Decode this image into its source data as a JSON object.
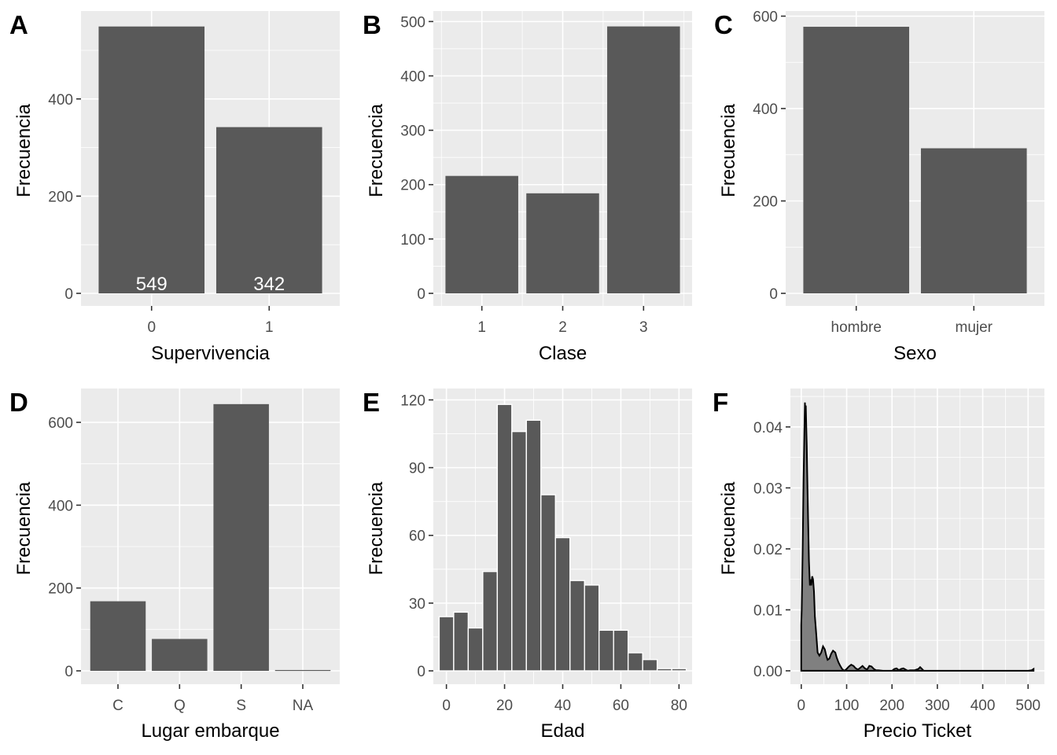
{
  "chart_data": [
    {
      "id": "A",
      "type": "bar",
      "tag": "A",
      "categories": [
        "0",
        "1"
      ],
      "values": [
        549,
        342
      ],
      "data_labels": [
        "549",
        "342"
      ],
      "xlabel": "Supervivencia",
      "ylabel": "Frecuencia",
      "yticks": [
        0,
        200,
        400
      ],
      "ylim": [
        0,
        576
      ],
      "grid": true
    },
    {
      "id": "B",
      "type": "bar",
      "tag": "B",
      "categories": [
        "1",
        "2",
        "3"
      ],
      "values": [
        216,
        184,
        491
      ],
      "xlabel": "Clase",
      "ylabel": "Frecuencia",
      "yticks": [
        0,
        100,
        200,
        300,
        400,
        500
      ],
      "ylim": [
        0,
        515
      ],
      "grid": true
    },
    {
      "id": "C",
      "type": "bar",
      "tag": "C",
      "categories": [
        "hombre",
        "mujer"
      ],
      "values": [
        577,
        314
      ],
      "xlabel": "Sexo",
      "ylabel": "Frecuencia",
      "yticks": [
        0,
        200,
        400,
        600
      ],
      "ylim": [
        0,
        606
      ],
      "grid": true
    },
    {
      "id": "D",
      "type": "bar",
      "tag": "D",
      "categories": [
        "C",
        "Q",
        "S",
        "NA"
      ],
      "values": [
        168,
        77,
        644,
        2
      ],
      "xlabel": "Lugar embarque",
      "ylabel": "Frecuencia",
      "yticks": [
        0,
        200,
        400,
        600
      ],
      "ylim": [
        0,
        676
      ],
      "grid": true
    },
    {
      "id": "E",
      "type": "bar",
      "subtype": "histogram",
      "tag": "E",
      "bin_width": 5,
      "bin_centers": [
        0,
        5,
        10,
        15,
        20,
        25,
        30,
        35,
        40,
        45,
        50,
        55,
        60,
        65,
        70,
        75,
        80
      ],
      "values": [
        24,
        26,
        19,
        44,
        118,
        106,
        111,
        78,
        59,
        40,
        38,
        18,
        18,
        8,
        5,
        1,
        1
      ],
      "xlabel": "Edad",
      "ylabel": "Frecuencia",
      "xticks": [
        0,
        20,
        40,
        60,
        80
      ],
      "yticks": [
        0,
        30,
        60,
        90,
        120
      ],
      "xlim": [
        -4.5,
        84.5
      ],
      "ylim": [
        0,
        124
      ],
      "grid": true
    },
    {
      "id": "F",
      "type": "area",
      "subtype": "density",
      "tag": "F",
      "x": [
        0,
        1,
        3,
        5,
        7,
        8,
        9,
        10,
        11,
        12,
        13,
        15,
        17,
        19,
        20,
        22,
        24,
        26,
        28,
        30,
        33,
        36,
        40,
        44,
        48,
        52,
        55,
        58,
        62,
        66,
        70,
        75,
        78,
        82,
        86,
        90,
        95,
        100,
        105,
        110,
        115,
        120,
        125,
        130,
        135,
        140,
        145,
        150,
        155,
        160,
        165,
        170,
        180,
        200,
        205,
        210,
        215,
        220,
        225,
        230,
        235,
        240,
        250,
        258,
        262,
        266,
        270,
        280,
        300,
        400,
        500,
        508,
        512
      ],
      "y": [
        0.0075,
        0.01,
        0.02,
        0.031,
        0.04,
        0.044,
        0.042,
        0.0435,
        0.04,
        0.037,
        0.033,
        0.025,
        0.018,
        0.014,
        0.015,
        0.014,
        0.0155,
        0.015,
        0.013,
        0.009,
        0.006,
        0.003,
        0.0025,
        0.003,
        0.004,
        0.0035,
        0.0025,
        0.0018,
        0.002,
        0.0028,
        0.0033,
        0.003,
        0.0022,
        0.0014,
        0.0008,
        0.0003,
        0.0,
        0.0003,
        0.0007,
        0.001,
        0.0008,
        0.0004,
        0.0002,
        0.0005,
        0.0008,
        0.0004,
        0.0002,
        0.0008,
        0.0007,
        0.0003,
        0.0001,
        0.0001,
        0.0,
        0.0,
        0.0003,
        0.0004,
        0.0001,
        0.0003,
        0.0004,
        0.0002,
        0.0,
        0.0001,
        0.0001,
        0.0003,
        0.0006,
        0.0003,
        0.0,
        0.0,
        0.0,
        0.0,
        0.0,
        0.0001,
        0.0003
      ],
      "xlabel": "Precio Ticket",
      "ylabel": "Frecuencia",
      "xticks": [
        0,
        100,
        200,
        300,
        400,
        500
      ],
      "yticks": [
        0.0,
        0.01,
        0.02,
        0.03,
        0.04
      ],
      "ytick_labels": [
        "0.00",
        "0.01",
        "0.02",
        "0.03",
        "0.04"
      ],
      "xlim": [
        -24,
        536
      ],
      "ylim": [
        -0.0022,
        0.0463
      ],
      "grid": true
    }
  ]
}
